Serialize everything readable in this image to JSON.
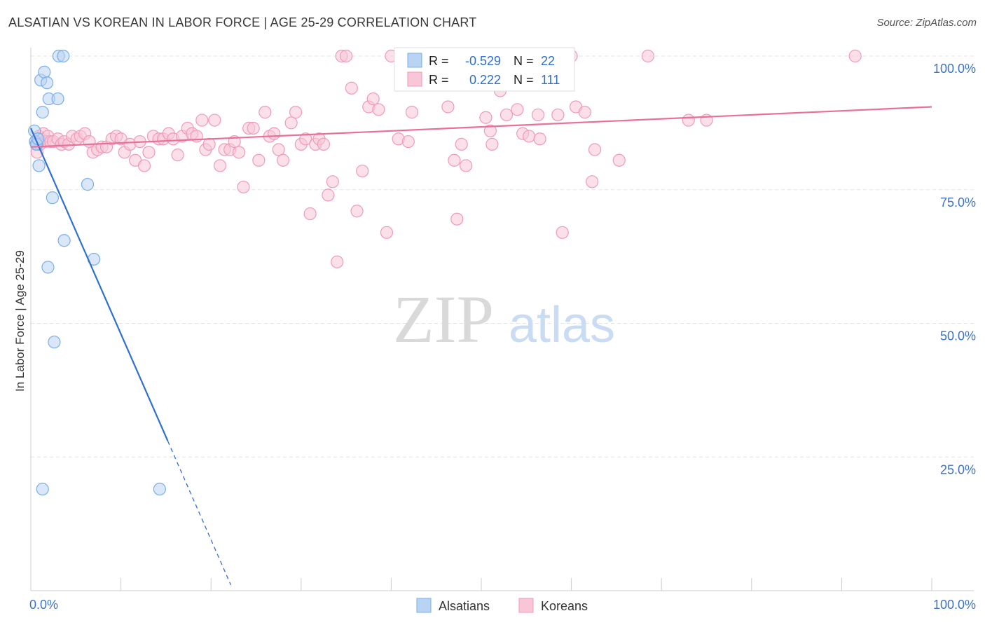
{
  "title": "ALSATIAN VS KOREAN IN LABOR FORCE | AGE 25-29 CORRELATION CHART",
  "source": "Source: ZipAtlas.com",
  "watermark": {
    "zip": "ZIP",
    "atlas": "atlas"
  },
  "chart_data": {
    "type": "scatter",
    "ylabel": "In Labor Force | Age 25-29",
    "xlim": [
      0,
      100
    ],
    "ylim": [
      0,
      100
    ],
    "x_tick_labels": [
      {
        "value": 0,
        "label": "0.0%"
      },
      {
        "value": 100,
        "label": "100.0%"
      }
    ],
    "y_tick_labels": [
      {
        "value": 25,
        "label": "25.0%"
      },
      {
        "value": 50,
        "label": "50.0%"
      },
      {
        "value": 75,
        "label": "75.0%"
      },
      {
        "value": 100,
        "label": "100.0%"
      }
    ],
    "grid": true,
    "legend_position": "bottom-center",
    "series": [
      {
        "name": "Alsatians",
        "color": "#7aaee8",
        "fill": "#b9d3f3",
        "line_color": "#2f6fcf",
        "R_label": "R =",
        "R": "-0.529",
        "N_label": "N =",
        "N": "22",
        "trend": {
          "x0": 0,
          "y0": 86.5,
          "x1": 15.2,
          "y1": 28.0,
          "dash_to_x": 22.2
        },
        "points": [
          [
            0.4,
            86.0
          ],
          [
            0.5,
            84.0
          ],
          [
            0.7,
            83.5
          ],
          [
            0.9,
            79.5
          ],
          [
            1.1,
            95.5
          ],
          [
            1.3,
            89.5
          ],
          [
            1.5,
            97.0
          ],
          [
            1.8,
            95.0
          ],
          [
            2.0,
            92.0
          ],
          [
            2.4,
            73.5
          ],
          [
            3.0,
            92.0
          ],
          [
            3.1,
            100.0
          ],
          [
            3.6,
            100.0
          ],
          [
            3.7,
            65.5
          ],
          [
            1.9,
            60.5
          ],
          [
            6.3,
            76.0
          ],
          [
            7.0,
            62.0
          ],
          [
            2.6,
            46.5
          ],
          [
            1.3,
            19.0
          ],
          [
            14.3,
            19.0
          ],
          [
            0.6,
            83.5
          ],
          [
            0.8,
            84.5
          ]
        ]
      },
      {
        "name": "Koreans",
        "color": "#f09ab8",
        "fill": "#f8c6d7",
        "line_color": "#e8709a",
        "R_label": "R =",
        "R": "0.222",
        "N_label": "N =",
        "N": "111",
        "trend": {
          "x0": 0,
          "y0": 83.0,
          "x1": 100,
          "y1": 90.5
        },
        "points": [
          [
            0.5,
            84.0
          ],
          [
            0.7,
            82.0
          ],
          [
            0.9,
            85.0
          ],
          [
            1.0,
            83.5
          ],
          [
            1.2,
            84.5
          ],
          [
            1.4,
            85.5
          ],
          [
            1.6,
            84.0
          ],
          [
            1.9,
            85.0
          ],
          [
            2.2,
            84.0
          ],
          [
            2.5,
            84.0
          ],
          [
            3.0,
            84.5
          ],
          [
            3.4,
            83.5
          ],
          [
            3.7,
            84.0
          ],
          [
            4.2,
            83.5
          ],
          [
            4.6,
            85.0
          ],
          [
            5.1,
            84.5
          ],
          [
            5.5,
            85.0
          ],
          [
            6.0,
            85.5
          ],
          [
            6.5,
            84.0
          ],
          [
            6.9,
            82.0
          ],
          [
            7.4,
            82.5
          ],
          [
            7.9,
            83.0
          ],
          [
            8.4,
            83.0
          ],
          [
            9.0,
            84.5
          ],
          [
            9.5,
            85.0
          ],
          [
            10.0,
            84.5
          ],
          [
            10.4,
            82.0
          ],
          [
            11.0,
            83.5
          ],
          [
            11.6,
            80.5
          ],
          [
            12.1,
            84.0
          ],
          [
            12.6,
            79.5
          ],
          [
            13.1,
            82.0
          ],
          [
            13.6,
            85.0
          ],
          [
            14.2,
            84.5
          ],
          [
            14.7,
            84.5
          ],
          [
            15.3,
            85.5
          ],
          [
            15.8,
            84.5
          ],
          [
            16.3,
            81.5
          ],
          [
            16.8,
            85.0
          ],
          [
            17.4,
            86.5
          ],
          [
            17.9,
            85.5
          ],
          [
            18.4,
            85.0
          ],
          [
            19.0,
            88.0
          ],
          [
            19.4,
            82.5
          ],
          [
            19.8,
            83.5
          ],
          [
            20.4,
            88.0
          ],
          [
            21.0,
            79.5
          ],
          [
            21.5,
            82.5
          ],
          [
            22.1,
            82.5
          ],
          [
            22.6,
            84.0
          ],
          [
            23.1,
            82.0
          ],
          [
            23.6,
            75.5
          ],
          [
            24.2,
            86.5
          ],
          [
            24.7,
            86.5
          ],
          [
            25.3,
            80.5
          ],
          [
            26.0,
            89.5
          ],
          [
            26.5,
            85.0
          ],
          [
            27.0,
            85.5
          ],
          [
            27.5,
            82.5
          ],
          [
            28.0,
            80.5
          ],
          [
            28.9,
            87.5
          ],
          [
            29.4,
            89.5
          ],
          [
            30.0,
            83.5
          ],
          [
            30.5,
            84.5
          ],
          [
            31.0,
            70.5
          ],
          [
            31.6,
            83.5
          ],
          [
            32.0,
            84.5
          ],
          [
            32.5,
            83.5
          ],
          [
            33.0,
            74.0
          ],
          [
            33.5,
            76.5
          ],
          [
            34.0,
            61.5
          ],
          [
            34.5,
            100.0
          ],
          [
            35.0,
            100.0
          ],
          [
            35.6,
            94.0
          ],
          [
            36.2,
            71.0
          ],
          [
            36.8,
            78.5
          ],
          [
            37.5,
            90.5
          ],
          [
            38.0,
            92.0
          ],
          [
            38.6,
            90.0
          ],
          [
            39.5,
            67.0
          ],
          [
            40.0,
            100.0
          ],
          [
            40.8,
            84.5
          ],
          [
            41.9,
            84.0
          ],
          [
            42.3,
            89.5
          ],
          [
            46.3,
            90.5
          ],
          [
            47.0,
            80.5
          ],
          [
            47.3,
            69.5
          ],
          [
            47.8,
            83.5
          ],
          [
            48.3,
            79.5
          ],
          [
            50.5,
            88.5
          ],
          [
            51.0,
            86.0
          ],
          [
            51.2,
            83.5
          ],
          [
            52.1,
            93.5
          ],
          [
            52.8,
            89.0
          ],
          [
            54.0,
            90.0
          ],
          [
            54.6,
            85.5
          ],
          [
            55.3,
            85.0
          ],
          [
            56.3,
            89.0
          ],
          [
            56.5,
            84.5
          ],
          [
            58.5,
            89.0
          ],
          [
            59.0,
            67.0
          ],
          [
            60.0,
            100.0
          ],
          [
            60.5,
            90.5
          ],
          [
            61.5,
            89.5
          ],
          [
            62.3,
            76.5
          ],
          [
            62.6,
            82.5
          ],
          [
            65.3,
            80.5
          ],
          [
            68.5,
            100.0
          ],
          [
            73.0,
            88.0
          ],
          [
            75.0,
            88.0
          ],
          [
            91.5,
            100.0
          ]
        ]
      }
    ]
  }
}
